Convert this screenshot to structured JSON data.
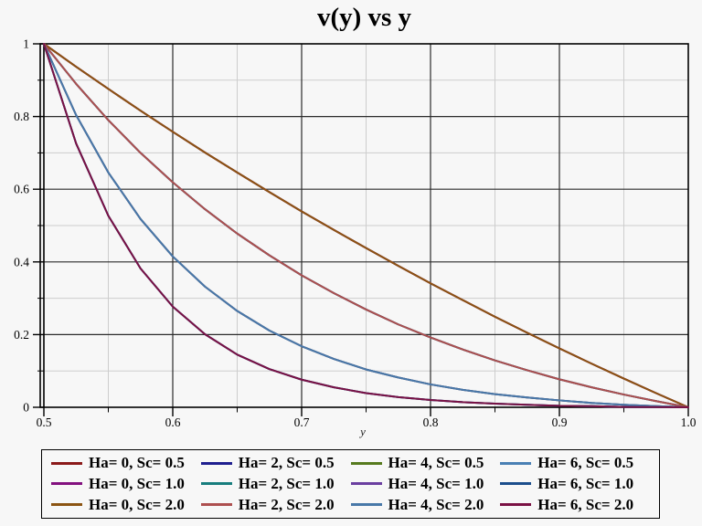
{
  "window": {
    "background": "#f7f7f7"
  },
  "chart_data": {
    "type": "line",
    "title": "v(y) vs y",
    "xlabel": "y",
    "ylabel": "",
    "xlim": [
      0.5,
      1.0
    ],
    "ylim": [
      0,
      1
    ],
    "legend_position": "bottom",
    "grid": "major-dark-minor-light",
    "colors": {
      "grid_major": "#2b2b2b",
      "grid_minor": "#cdcdcd",
      "frame": "#000000",
      "background": "#f7f7f7"
    },
    "x_ticks": {
      "major_values": [
        0.5,
        0.6,
        0.7,
        0.8,
        0.9,
        1.0
      ],
      "major_labels": [
        "0.5",
        "0.6",
        "0.7",
        "0.8",
        "0.9",
        "1.0"
      ],
      "minor_values": [
        0.55,
        0.65,
        0.75,
        0.85,
        0.95
      ]
    },
    "y_ticks": {
      "major_values": [
        0,
        0.2,
        0.4,
        0.6,
        0.8,
        1
      ],
      "major_labels": [
        "0",
        "0.2",
        "0.4",
        "0.6",
        "0.8",
        "1"
      ],
      "minor_values": [
        0.1,
        0.3,
        0.5,
        0.7,
        0.9
      ]
    },
    "x": [
      0.5,
      0.525,
      0.55,
      0.575,
      0.6,
      0.625,
      0.65,
      0.675,
      0.7,
      0.725,
      0.75,
      0.775,
      0.8,
      0.825,
      0.85,
      0.875,
      0.9,
      0.925,
      0.95,
      0.975,
      1.0
    ],
    "series": [
      {
        "label": "Ha= 0, Sc= 0.5",
        "ha": 0,
        "sc": "0.5",
        "color": "#8b1a1a",
        "values": [
          1,
          0.937,
          0.876,
          0.816,
          0.758,
          0.701,
          0.646,
          0.592,
          0.539,
          0.488,
          0.438,
          0.389,
          0.341,
          0.295,
          0.249,
          0.205,
          0.162,
          0.12,
          0.079,
          0.039,
          0
        ]
      },
      {
        "label": "Ha= 2, Sc= 0.5",
        "ha": 2,
        "sc": "0.5",
        "color": "#1f1f8f",
        "values": [
          1,
          0.89,
          0.79,
          0.7,
          0.619,
          0.545,
          0.478,
          0.418,
          0.363,
          0.314,
          0.269,
          0.228,
          0.192,
          0.159,
          0.129,
          0.102,
          0.077,
          0.055,
          0.035,
          0.017,
          0
        ]
      },
      {
        "label": "Ha= 4, Sc= 0.5",
        "ha": 4,
        "sc": "0.5",
        "color": "#567a1e",
        "values": [
          1,
          0.804,
          0.646,
          0.518,
          0.415,
          0.332,
          0.265,
          0.211,
          0.168,
          0.133,
          0.104,
          0.082,
          0.063,
          0.048,
          0.036,
          0.027,
          0.019,
          0.012,
          0.007,
          0.003,
          0
        ]
      },
      {
        "label": "Ha= 6, Sc= 0.5",
        "ha": 6,
        "sc": "0.5",
        "color": "#4a80b4",
        "values": [
          1,
          0.726,
          0.527,
          0.382,
          0.277,
          0.201,
          0.145,
          0.105,
          0.076,
          0.055,
          0.039,
          0.028,
          0.02,
          0.014,
          0.01,
          0.007,
          0.004,
          0.003,
          0.001,
          0.0006,
          0
        ]
      },
      {
        "label": "Ha= 0, Sc= 1.0",
        "ha": 0,
        "sc": "1.0",
        "color": "#83117f",
        "values": [
          1,
          0.937,
          0.876,
          0.816,
          0.758,
          0.701,
          0.646,
          0.592,
          0.539,
          0.488,
          0.438,
          0.389,
          0.341,
          0.295,
          0.249,
          0.205,
          0.162,
          0.12,
          0.079,
          0.039,
          0
        ]
      },
      {
        "label": "Ha= 2, Sc= 1.0",
        "ha": 2,
        "sc": "1.0",
        "color": "#177d7d",
        "values": [
          1,
          0.89,
          0.79,
          0.7,
          0.619,
          0.545,
          0.478,
          0.418,
          0.363,
          0.314,
          0.269,
          0.228,
          0.192,
          0.159,
          0.129,
          0.102,
          0.077,
          0.055,
          0.035,
          0.017,
          0
        ]
      },
      {
        "label": "Ha= 4, Sc= 1.0",
        "ha": 4,
        "sc": "1.0",
        "color": "#6b3fa0",
        "values": [
          1,
          0.804,
          0.646,
          0.518,
          0.415,
          0.332,
          0.265,
          0.211,
          0.168,
          0.133,
          0.104,
          0.082,
          0.063,
          0.048,
          0.036,
          0.027,
          0.019,
          0.012,
          0.007,
          0.003,
          0
        ]
      },
      {
        "label": "Ha= 6, Sc= 1.0",
        "ha": 6,
        "sc": "1.0",
        "color": "#1c4e8c",
        "values": [
          1,
          0.726,
          0.527,
          0.382,
          0.277,
          0.201,
          0.145,
          0.105,
          0.076,
          0.055,
          0.039,
          0.028,
          0.02,
          0.014,
          0.01,
          0.007,
          0.004,
          0.003,
          0.001,
          0.0006,
          0
        ]
      },
      {
        "label": "Ha= 0, Sc= 2.0",
        "ha": 0,
        "sc": "2.0",
        "color": "#8b5412",
        "values": [
          1,
          0.937,
          0.876,
          0.816,
          0.758,
          0.701,
          0.646,
          0.592,
          0.539,
          0.488,
          0.438,
          0.389,
          0.341,
          0.295,
          0.249,
          0.205,
          0.162,
          0.12,
          0.079,
          0.039,
          0
        ]
      },
      {
        "label": "Ha= 2, Sc= 2.0",
        "ha": 2,
        "sc": "2.0",
        "color": "#ad4f4f",
        "values": [
          1,
          0.89,
          0.79,
          0.7,
          0.619,
          0.545,
          0.478,
          0.418,
          0.363,
          0.314,
          0.269,
          0.228,
          0.192,
          0.159,
          0.129,
          0.102,
          0.077,
          0.055,
          0.035,
          0.017,
          0
        ]
      },
      {
        "label": "Ha= 4, Sc= 2.0",
        "ha": 4,
        "sc": "2.0",
        "color": "#4878a8",
        "values": [
          1,
          0.804,
          0.646,
          0.518,
          0.415,
          0.332,
          0.265,
          0.211,
          0.168,
          0.133,
          0.104,
          0.082,
          0.063,
          0.048,
          0.036,
          0.027,
          0.019,
          0.012,
          0.007,
          0.003,
          0
        ]
      },
      {
        "label": "Ha= 6, Sc= 2.0",
        "ha": 6,
        "sc": "2.0",
        "color": "#7a1144",
        "values": [
          1,
          0.726,
          0.527,
          0.382,
          0.277,
          0.201,
          0.145,
          0.105,
          0.076,
          0.055,
          0.039,
          0.028,
          0.02,
          0.014,
          0.01,
          0.007,
          0.004,
          0.003,
          0.001,
          0.0006,
          0
        ]
      }
    ]
  }
}
